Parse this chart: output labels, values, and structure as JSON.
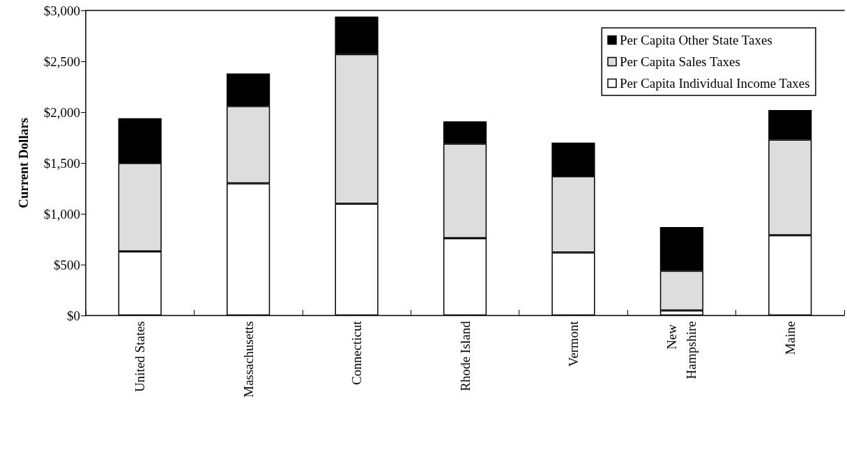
{
  "chart_data": {
    "type": "bar",
    "stacked": true,
    "ylabel": "Current Dollars",
    "categories": [
      "United States",
      "Massachusetts",
      "Connecticut",
      "Rhode Island",
      "Vermont",
      "New Hampshire",
      "Maine"
    ],
    "series": [
      {
        "name": "Per Capita Individual Income Taxes",
        "color": "#ffffff",
        "values": [
          630,
          1300,
          1100,
          760,
          620,
          50,
          790
        ]
      },
      {
        "name": "Per Capita Sales Taxes",
        "color": "#dddddd",
        "values": [
          870,
          760,
          1470,
          930,
          750,
          390,
          940
        ]
      },
      {
        "name": "Per Capita Other State Taxes",
        "color": "#000000",
        "values": [
          440,
          320,
          370,
          220,
          330,
          430,
          290
        ]
      }
    ],
    "ylim": [
      0,
      3000
    ],
    "yticks": [
      {
        "value": 0,
        "label": "$0"
      },
      {
        "value": 500,
        "label": "$500"
      },
      {
        "value": 1000,
        "label": "$1,000"
      },
      {
        "value": 1500,
        "label": "$1,500"
      },
      {
        "value": 2000,
        "label": "$2,000"
      },
      {
        "value": 2500,
        "label": "$2,500"
      },
      {
        "value": 3000,
        "label": "$3,000"
      }
    ],
    "grid": false,
    "legend": "top right"
  }
}
